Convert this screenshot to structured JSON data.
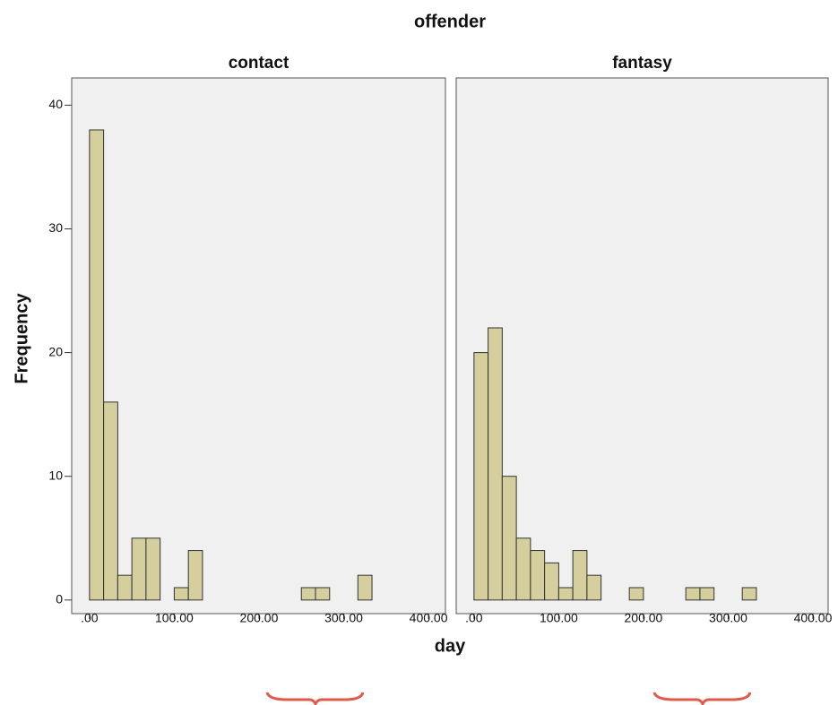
{
  "title": "offender",
  "x_label": "day",
  "y_label": "Frequency",
  "chart_data": [
    {
      "type": "histogram",
      "title": "contact",
      "bins": [
        0,
        16.67,
        33.33,
        50,
        66.67,
        83.33,
        100,
        116.67,
        133.33,
        150,
        166.67,
        183.33,
        200,
        216.67,
        233.33,
        250,
        266.67,
        283.33,
        300,
        316.67,
        333.33
      ],
      "counts": [
        38,
        16,
        2,
        5,
        5,
        0,
        1,
        4,
        0,
        0,
        0,
        0,
        0,
        0,
        0,
        1,
        1,
        0,
        0,
        2
      ],
      "color": "#d4cf9c",
      "xlim": [
        -21,
        420
      ],
      "ylim": [
        -1.1,
        42.2
      ],
      "xticks": [
        {
          "value": 0,
          "label": ".00"
        },
        {
          "value": 100,
          "label": "100.00"
        },
        {
          "value": 200,
          "label": "200.00"
        },
        {
          "value": 300,
          "label": "300.00"
        },
        {
          "value": 400,
          "label": "400.00"
        }
      ],
      "yticks": [
        0,
        10,
        20,
        30,
        40
      ]
    },
    {
      "type": "histogram",
      "title": "fantasy",
      "bins": [
        0,
        16.67,
        33.33,
        50,
        66.67,
        83.33,
        100,
        116.67,
        133.33,
        150,
        166.67,
        183.33,
        200,
        216.67,
        233.33,
        250,
        266.67,
        283.33,
        300,
        316.67,
        333.33
      ],
      "counts": [
        20,
        22,
        10,
        5,
        4,
        3,
        1,
        4,
        2,
        0,
        0,
        1,
        0,
        0,
        0,
        1,
        1,
        0,
        0,
        1
      ],
      "color": "#d4cf9c",
      "xlim": [
        -21,
        418
      ],
      "ylim": [
        -1.1,
        42.2
      ],
      "xticks": [
        {
          "value": 0,
          "label": ".00"
        },
        {
          "value": 100,
          "label": "100.00"
        },
        {
          "value": 200,
          "label": "200.00"
        },
        {
          "value": 300,
          "label": "300.00"
        },
        {
          "value": 400,
          "label": "400.00"
        }
      ]
    }
  ]
}
